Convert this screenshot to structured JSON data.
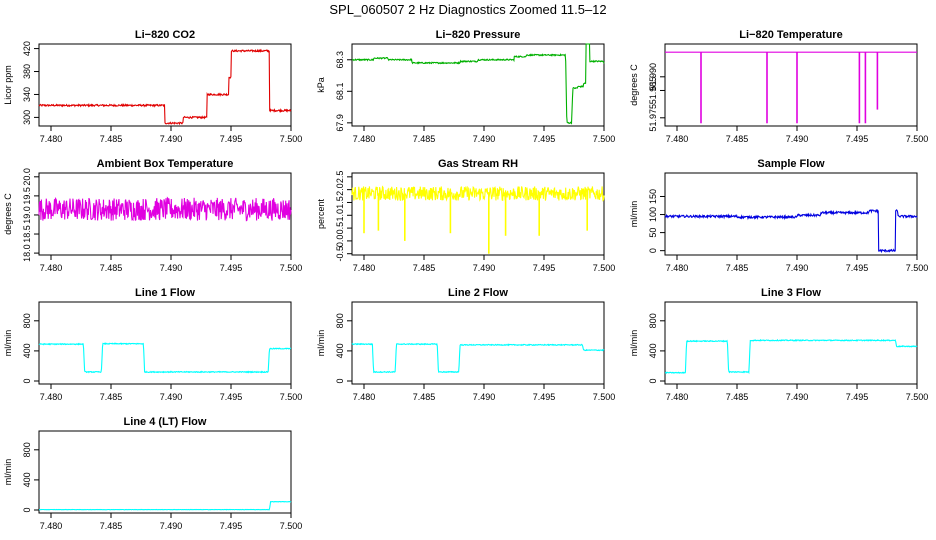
{
  "page": {
    "title": "SPL_060507  2 Hz Diagnostics Zoomed 11.5–12"
  },
  "x_ticks": [
    "7.480",
    "7.485",
    "7.490",
    "7.495",
    "7.500"
  ],
  "chart_data": [
    {
      "type": "line",
      "title": "Li−820 CO2",
      "xlabel": "",
      "ylabel": "Licor ppm",
      "color": "#e00000",
      "xlim": [
        7.479,
        7.5
      ],
      "ylim": [
        285,
        428
      ],
      "yticks": [
        "300",
        "340",
        "380",
        "420"
      ],
      "ytick_values": [
        300,
        340,
        380,
        420
      ],
      "noise": 1.5,
      "spikes": [],
      "steps": [
        [
          7.479,
          321
        ],
        [
          7.4895,
          290
        ],
        [
          7.491,
          300
        ],
        [
          7.493,
          340
        ],
        [
          7.4948,
          370
        ],
        [
          7.495,
          416
        ],
        [
          7.4982,
          312
        ],
        [
          7.5,
          312
        ]
      ]
    },
    {
      "type": "line",
      "title": "Li−820 Pressure",
      "xlabel": "",
      "ylabel": "kPa",
      "color": "#00b000",
      "xlim": [
        7.479,
        7.5
      ],
      "ylim": [
        67.88,
        68.4
      ],
      "yticks": [
        "67.9",
        "68.1",
        "68.3"
      ],
      "ytick_values": [
        67.9,
        68.1,
        68.3
      ],
      "noise": 0.004,
      "spikes": [],
      "steps": [
        [
          7.479,
          68.3
        ],
        [
          7.48,
          68.3
        ],
        [
          7.4808,
          68.31
        ],
        [
          7.482,
          68.3
        ],
        [
          7.484,
          68.28
        ],
        [
          7.486,
          68.28
        ],
        [
          7.488,
          68.29
        ],
        [
          7.4895,
          68.3
        ],
        [
          7.491,
          68.3
        ],
        [
          7.4925,
          68.32
        ],
        [
          7.4935,
          68.33
        ],
        [
          7.4955,
          68.33
        ],
        [
          7.4968,
          68.33
        ],
        [
          7.4969,
          67.9
        ],
        [
          7.4973,
          67.9
        ],
        [
          7.4974,
          68.12
        ],
        [
          7.4978,
          68.13
        ],
        [
          7.4983,
          68.15
        ],
        [
          7.4985,
          68.42
        ],
        [
          7.4988,
          68.29
        ],
        [
          7.5,
          68.28
        ]
      ]
    },
    {
      "type": "line",
      "title": "Li−820 Temperature",
      "xlabel": "",
      "ylabel": "degrees C",
      "color": "#e000e0",
      "xlim": [
        7.479,
        7.5
      ],
      "ylim": [
        51.972,
        52.002
      ],
      "yticks": [
        "51.975",
        "51.985",
        "51.990"
      ],
      "ytick_values": [
        51.975,
        51.985,
        51.99
      ],
      "noise": 0,
      "steps": [
        [
          7.479,
          51.999
        ],
        [
          7.5,
          51.999
        ]
      ],
      "spikes": [
        [
          7.482,
          51.973
        ],
        [
          7.4875,
          51.973
        ],
        [
          7.49,
          51.973
        ],
        [
          7.4952,
          51.973
        ],
        [
          7.4957,
          51.973
        ],
        [
          7.4967,
          51.978
        ]
      ]
    },
    {
      "type": "line",
      "title": "Ambient Box Temperature",
      "xlabel": "",
      "ylabel": "degrees C",
      "color": "#e000e0",
      "xlim": [
        7.479,
        7.5
      ],
      "ylim": [
        17.95,
        20.1
      ],
      "yticks": [
        "18.0",
        "18.5",
        "19.0",
        "19.5",
        "20.0"
      ],
      "ytick_values": [
        18.0,
        18.5,
        19.0,
        19.5,
        20.0
      ],
      "noise": 0.3,
      "spikes": [],
      "steps": [
        [
          7.479,
          19.15
        ],
        [
          7.5,
          19.1
        ]
      ]
    },
    {
      "type": "line",
      "title": "Gas Stream RH",
      "xlabel": "",
      "ylabel": "percent",
      "color": "#ffff00",
      "xlim": [
        7.479,
        7.5
      ],
      "ylim": [
        -0.55,
        2.65
      ],
      "yticks": [
        "-0.5",
        "0.0",
        "0.5",
        "1.0",
        "1.5",
        "2.0",
        "2.5"
      ],
      "ytick_values": [
        -0.5,
        0.0,
        0.5,
        1.0,
        1.5,
        2.0,
        2.5
      ],
      "noise": 0.28,
      "spikes": [
        [
          7.48,
          0.3
        ],
        [
          7.4812,
          0.4
        ],
        [
          7.4834,
          0.0
        ],
        [
          7.4872,
          0.3
        ],
        [
          7.4904,
          -0.5
        ],
        [
          7.4918,
          0.2
        ],
        [
          7.4946,
          0.2
        ],
        [
          7.4986,
          0.4
        ]
      ],
      "steps": [
        [
          7.479,
          1.85
        ],
        [
          7.5,
          1.85
        ]
      ]
    },
    {
      "type": "line",
      "title": "Sample Flow",
      "xlabel": "",
      "ylabel": "ml/min",
      "color": "#0000e0",
      "xlim": [
        7.479,
        7.5
      ],
      "ylim": [
        -12,
        215
      ],
      "yticks": [
        "0",
        "50",
        "100",
        "150"
      ],
      "ytick_values": [
        0,
        50,
        100,
        150
      ],
      "noise": 3,
      "spikes": [],
      "steps": [
        [
          7.479,
          95
        ],
        [
          7.485,
          93
        ],
        [
          7.49,
          98
        ],
        [
          7.492,
          105
        ],
        [
          7.496,
          110
        ],
        [
          7.4968,
          0
        ],
        [
          7.498,
          0
        ],
        [
          7.4982,
          110
        ],
        [
          7.4984,
          95
        ],
        [
          7.5,
          92
        ]
      ]
    },
    {
      "type": "line",
      "title": "Line 1 Flow",
      "xlabel": "",
      "ylabel": "ml/min",
      "color": "#00ffff",
      "xlim": [
        7.479,
        7.5
      ],
      "ylim": [
        -40,
        1050
      ],
      "yticks": [
        "0",
        "400",
        "800"
      ],
      "ytick_values": [
        0,
        400,
        800
      ],
      "noise": 6,
      "spikes": [],
      "steps": [
        [
          7.479,
          490
        ],
        [
          7.4827,
          490
        ],
        [
          7.4828,
          120
        ],
        [
          7.4842,
          120
        ],
        [
          7.4843,
          495
        ],
        [
          7.4877,
          495
        ],
        [
          7.4878,
          120
        ],
        [
          7.4981,
          120
        ],
        [
          7.4982,
          430
        ],
        [
          7.5,
          430
        ]
      ]
    },
    {
      "type": "line",
      "title": "Line 2 Flow",
      "xlabel": "",
      "ylabel": "ml/min",
      "color": "#00ffff",
      "xlim": [
        7.479,
        7.5
      ],
      "ylim": [
        -40,
        1050
      ],
      "yticks": [
        "0",
        "400",
        "800"
      ],
      "ytick_values": [
        0,
        400,
        800
      ],
      "noise": 6,
      "spikes": [],
      "steps": [
        [
          7.479,
          490
        ],
        [
          7.4807,
          490
        ],
        [
          7.4808,
          120
        ],
        [
          7.4826,
          120
        ],
        [
          7.4827,
          490
        ],
        [
          7.4861,
          490
        ],
        [
          7.4862,
          120
        ],
        [
          7.4879,
          120
        ],
        [
          7.488,
          480
        ],
        [
          7.4982,
          480
        ],
        [
          7.4983,
          410
        ],
        [
          7.5,
          410
        ]
      ]
    },
    {
      "type": "line",
      "title": "Line 3 Flow",
      "xlabel": "",
      "ylabel": "ml/min",
      "color": "#00ffff",
      "xlim": [
        7.479,
        7.5
      ],
      "ylim": [
        -40,
        1050
      ],
      "yticks": [
        "0",
        "400",
        "800"
      ],
      "ytick_values": [
        0,
        400,
        800
      ],
      "noise": 6,
      "spikes": [],
      "steps": [
        [
          7.479,
          110
        ],
        [
          7.4807,
          110
        ],
        [
          7.4808,
          530
        ],
        [
          7.4842,
          530
        ],
        [
          7.4843,
          120
        ],
        [
          7.486,
          120
        ],
        [
          7.4861,
          540
        ],
        [
          7.4982,
          540
        ],
        [
          7.4983,
          460
        ],
        [
          7.5,
          460
        ]
      ]
    },
    {
      "type": "line",
      "title": "Line 4 (LT) Flow",
      "xlabel": "",
      "ylabel": "ml/min",
      "color": "#00ffff",
      "xlim": [
        7.479,
        7.5
      ],
      "ylim": [
        -40,
        1050
      ],
      "yticks": [
        "0",
        "400",
        "800"
      ],
      "ytick_values": [
        0,
        400,
        800
      ],
      "noise": 2,
      "spikes": [],
      "steps": [
        [
          7.479,
          5
        ],
        [
          7.4982,
          5
        ],
        [
          7.4983,
          110
        ],
        [
          7.5,
          105
        ]
      ]
    }
  ]
}
